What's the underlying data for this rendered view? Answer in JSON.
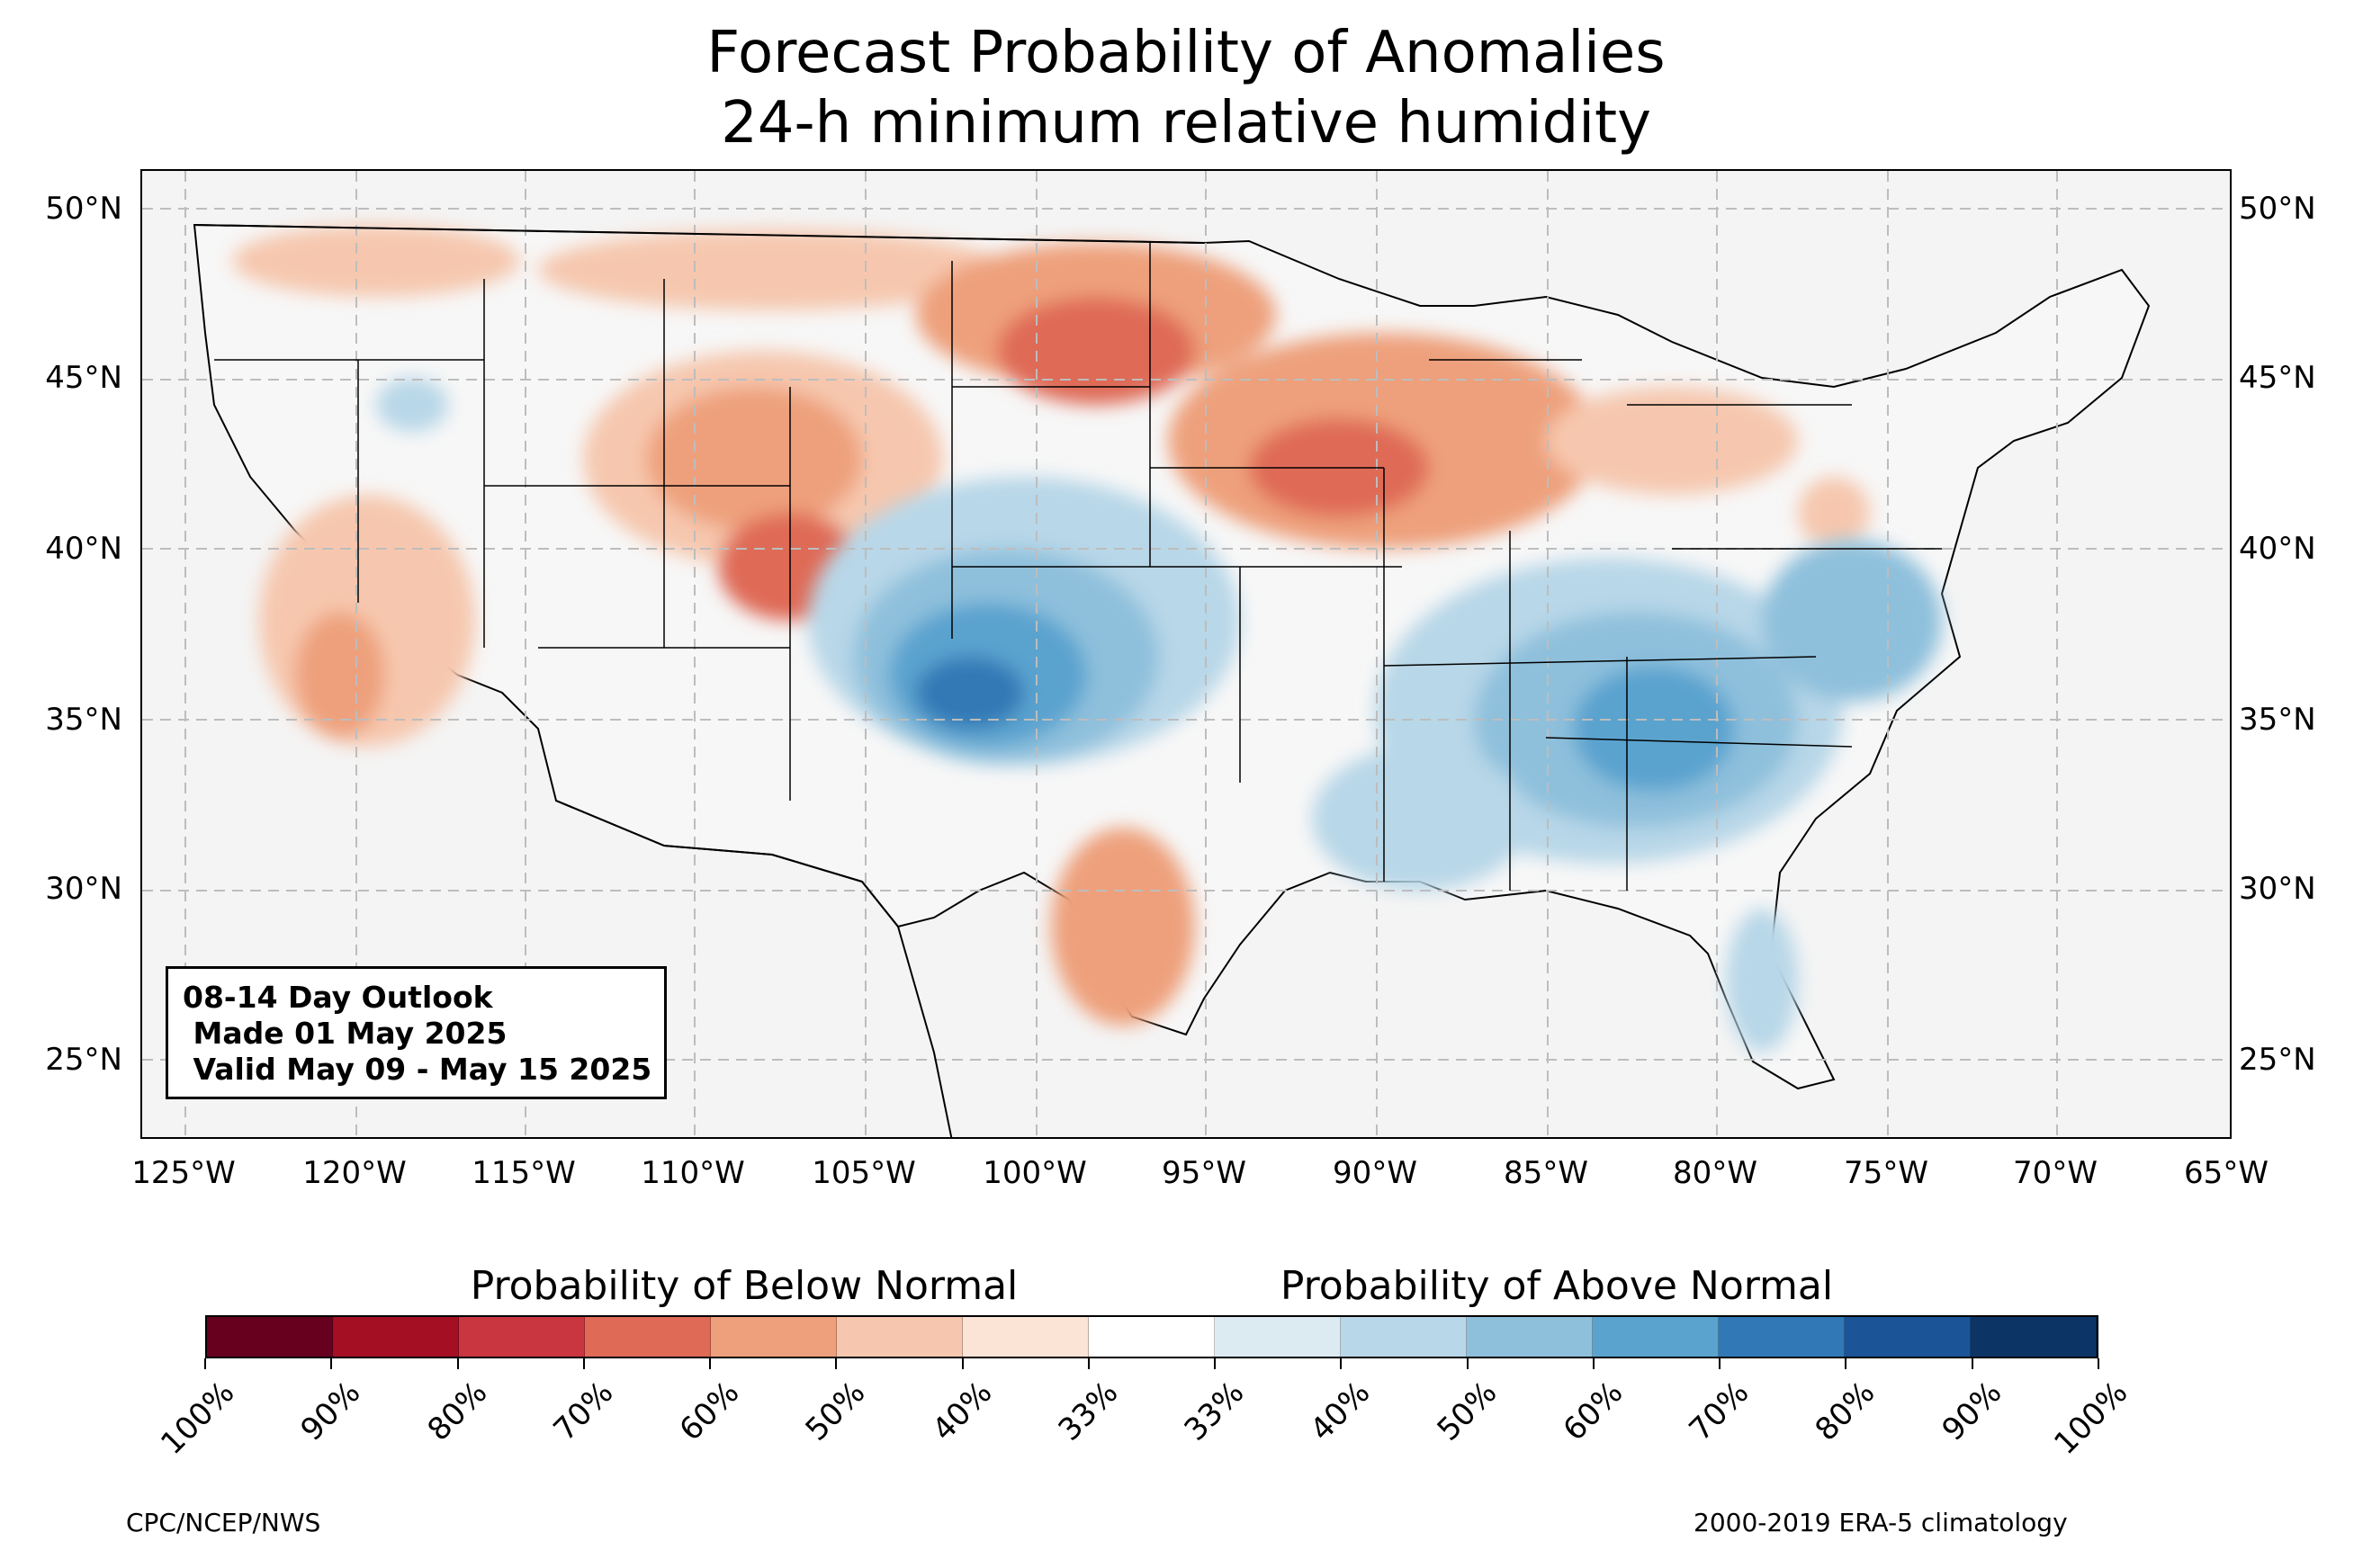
{
  "title_line1": "Forecast Probability of Anomalies",
  "title_line2": "24-h minimum relative humidity",
  "lat_labels": [
    "50°N",
    "45°N",
    "40°N",
    "35°N",
    "30°N",
    "25°N"
  ],
  "lon_labels": [
    "125°W",
    "120°W",
    "115°W",
    "110°W",
    "105°W",
    "100°W",
    "95°W",
    "90°W",
    "85°W",
    "80°W",
    "75°W",
    "70°W",
    "65°W"
  ],
  "outlook": {
    "line1": "08-14 Day Outlook",
    "line2": " Made 01 May 2025",
    "line3": " Valid May 09 - May 15 2025"
  },
  "colorbar": {
    "below_label": "Probability of Below Normal",
    "above_label": "Probability of Above Normal",
    "tick_labels": [
      "100%",
      "90%",
      "80%",
      "70%",
      "60%",
      "50%",
      "40%",
      "33%",
      "33%",
      "40%",
      "50%",
      "60%",
      "70%",
      "80%",
      "90%",
      "100%"
    ],
    "colors": [
      "#67001f",
      "#a50f24",
      "#c9363f",
      "#df6a56",
      "#eea07c",
      "#f6c7ae",
      "#fbe3d5",
      "#ffffff",
      "#dceaf2",
      "#b8d7e8",
      "#8ec0dc",
      "#5aa3cf",
      "#3179b6",
      "#1b5598",
      "#0c3566"
    ]
  },
  "footer": {
    "left": "CPC/NCEP/NWS",
    "right": "2000-2019 ERA-5 climatology"
  }
}
